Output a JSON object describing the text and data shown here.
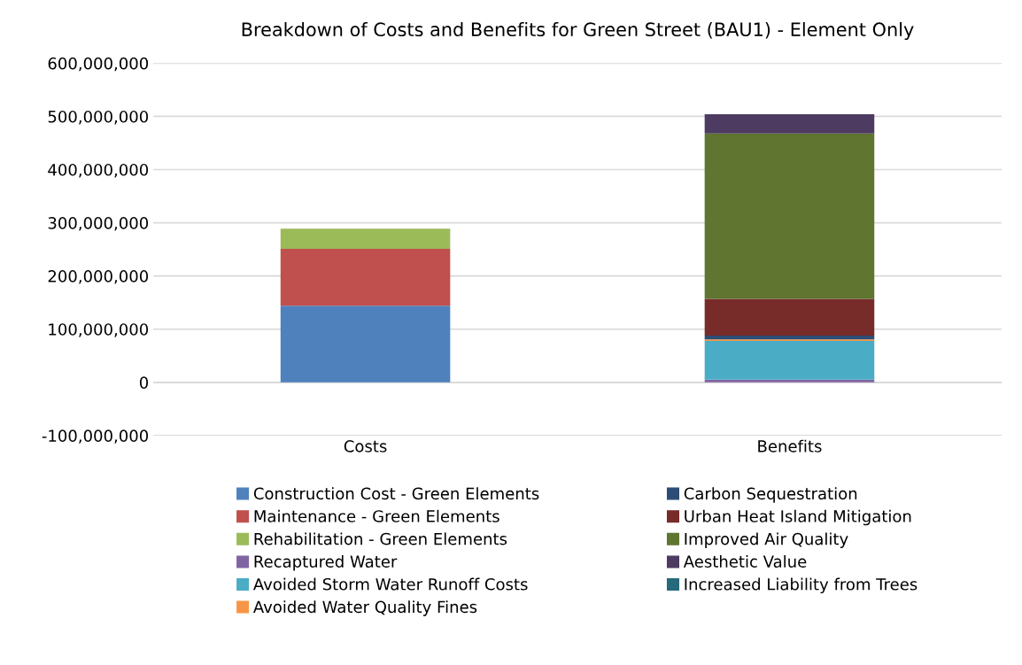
{
  "chart_data": {
    "type": "bar",
    "stacked": true,
    "title": "Breakdown of Costs and Benefits for Green Street (BAU1) - Element Only",
    "categories": [
      "Costs",
      "Benefits"
    ],
    "series": [
      {
        "name": "Construction Cost - Green Elements",
        "color": "#4f81bd",
        "values": [
          144000000,
          null
        ]
      },
      {
        "name": "Maintenance - Green Elements",
        "color": "#c0504d",
        "values": [
          107000000,
          null
        ]
      },
      {
        "name": "Rehabilitation - Green Elements",
        "color": "#9bbb59",
        "values": [
          38000000,
          null
        ]
      },
      {
        "name": "Recaptured Water",
        "color": "#8064a2",
        "values": [
          null,
          5000000
        ]
      },
      {
        "name": "Avoided Storm Water Runoff Costs",
        "color": "#4bacc6",
        "values": [
          null,
          73000000
        ]
      },
      {
        "name": "Avoided Water Quality Fines",
        "color": "#f79646",
        "values": [
          null,
          3000000
        ]
      },
      {
        "name": "Carbon Sequestration",
        "color": "#2c4d75",
        "values": [
          null,
          7000000
        ]
      },
      {
        "name": "Urban Heat Island Mitigation",
        "color": "#772c2a",
        "values": [
          null,
          69000000
        ]
      },
      {
        "name": "Improved Air Quality",
        "color": "#5f7530",
        "values": [
          null,
          311000000
        ]
      },
      {
        "name": "Aesthetic Value",
        "color": "#4d3b62",
        "values": [
          null,
          36000000
        ]
      },
      {
        "name": "Increased Liability from Trees",
        "color": "#276a7c",
        "values": [
          null,
          0
        ]
      }
    ],
    "ylim": [
      -100000000,
      600000000
    ],
    "yticks": [
      {
        "value": -100000000,
        "label": "-100,000,000"
      },
      {
        "value": 0,
        "label": "0"
      },
      {
        "value": 100000000,
        "label": "100,000,000"
      },
      {
        "value": 200000000,
        "label": "200,000,000"
      },
      {
        "value": 300000000,
        "label": "300,000,000"
      },
      {
        "value": 400000000,
        "label": "400,000,000"
      },
      {
        "value": 500000000,
        "label": "500,000,000"
      },
      {
        "value": 600000000,
        "label": "600,000,000"
      }
    ],
    "grid": "y",
    "legend": "bottom"
  }
}
